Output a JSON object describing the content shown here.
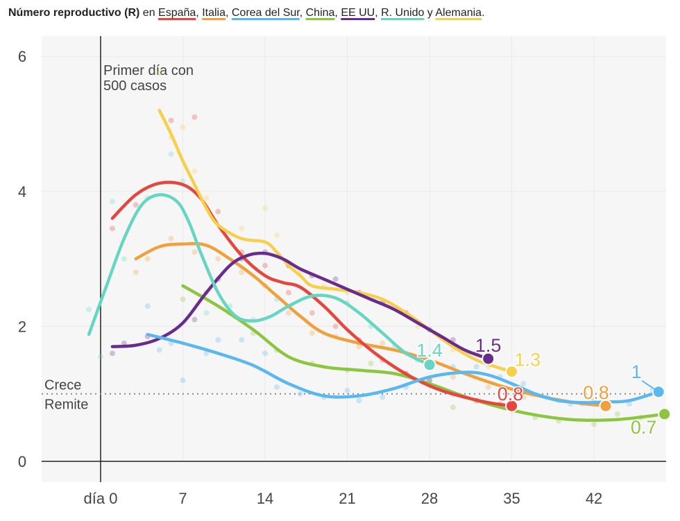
{
  "header": {
    "title": "Número reproductivo (R)",
    "prefix": " en ",
    "suffix": ".",
    "countries": [
      {
        "name": "España",
        "sep": ", ",
        "color": "#e5463e"
      },
      {
        "name": "Italia",
        "sep": ", ",
        "color": "#f0a03c"
      },
      {
        "name": "Corea del Sur",
        "sep": ", ",
        "color": "#5bb8ef"
      },
      {
        "name": "China",
        "sep": ", ",
        "color": "#8cc63f"
      },
      {
        "name": "EE UU",
        "sep": ", ",
        "color": "#6a2c8c"
      },
      {
        "name": "R. Unido",
        "sep": " y ",
        "color": "#66d6c3"
      },
      {
        "name": "Alemania",
        "sep": "",
        "color": "#f6d04d"
      }
    ]
  },
  "chart_data": {
    "type": "line",
    "title": "Número reproductivo (R) en España, Italia, Corea del Sur, China, EE UU, R. Unido y Alemania.",
    "xlim": [
      -7,
      48
    ],
    "ylim": [
      -0.3,
      6.3
    ],
    "x_ticks": [
      0,
      7,
      14,
      21,
      28,
      35,
      42
    ],
    "x_tick_labels": [
      "día 0",
      "7",
      "14",
      "21",
      "28",
      "35",
      "42"
    ],
    "y_ticks": [
      0,
      2,
      4,
      6
    ],
    "y_tick_labels": [
      "0",
      "2",
      "4",
      "6"
    ],
    "grid": true,
    "annotations": {
      "day_zero_line": {
        "x": 0,
        "text_line1": "Primer día con",
        "text_line2": "500 casos"
      },
      "threshold": {
        "y": 1,
        "above": "Crece",
        "below": "Remite"
      }
    },
    "series": [
      {
        "name": "China",
        "color": "#8cc63f",
        "x": [
          7,
          10,
          13,
          16,
          19,
          22,
          25,
          28,
          32,
          36,
          40,
          44,
          48
        ],
        "y": [
          2.6,
          2.3,
          1.95,
          1.55,
          1.4,
          1.35,
          1.3,
          1.15,
          0.9,
          0.72,
          0.62,
          0.62,
          0.7
        ],
        "end_label": "0.7",
        "scatter": [
          [
            7,
            2.4
          ],
          [
            9,
            2.5
          ],
          [
            11,
            2.2
          ],
          [
            13,
            1.9
          ],
          [
            15,
            1.65
          ],
          [
            18,
            1.45
          ],
          [
            21,
            1.35
          ],
          [
            23,
            1.45
          ],
          [
            26,
            1.3
          ],
          [
            28,
            1.2
          ],
          [
            30,
            0.8
          ],
          [
            32,
            0.9
          ],
          [
            35,
            0.75
          ],
          [
            37,
            0.65
          ],
          [
            39,
            0.6
          ],
          [
            42,
            0.55
          ],
          [
            44,
            0.7
          ],
          [
            46,
            0.65
          ]
        ]
      },
      {
        "name": "Italia",
        "color": "#f0a03c",
        "x": [
          3,
          5,
          7,
          9,
          11,
          13,
          15,
          17,
          19,
          22,
          25,
          28,
          31,
          34,
          37,
          40,
          43
        ],
        "y": [
          3.0,
          3.18,
          3.22,
          3.2,
          3.0,
          2.75,
          2.45,
          2.15,
          1.9,
          1.75,
          1.65,
          1.5,
          1.3,
          1.12,
          0.98,
          0.88,
          0.82
        ],
        "end_label": "0.8",
        "scatter": [
          [
            3,
            2.8
          ],
          [
            4,
            3.0
          ],
          [
            6,
            3.3
          ],
          [
            8,
            3.1
          ],
          [
            10,
            3.0
          ],
          [
            12,
            2.8
          ],
          [
            14,
            2.6
          ],
          [
            16,
            2.2
          ],
          [
            18,
            1.9
          ],
          [
            20,
            1.85
          ],
          [
            22,
            1.7
          ],
          [
            24,
            1.75
          ],
          [
            26,
            1.6
          ],
          [
            28,
            1.4
          ],
          [
            30,
            1.25
          ],
          [
            33,
            1.1
          ],
          [
            36,
            0.95
          ],
          [
            39,
            0.9
          ],
          [
            41,
            0.85
          ]
        ]
      },
      {
        "name": "España",
        "color": "#e5463e",
        "x": [
          1,
          3,
          5,
          7,
          8.5,
          10,
          12,
          14,
          15.5,
          17,
          19,
          21,
          23,
          25,
          27,
          29,
          31,
          33,
          35
        ],
        "y": [
          3.6,
          3.95,
          4.12,
          4.1,
          3.9,
          3.5,
          3.05,
          2.75,
          2.65,
          2.58,
          2.3,
          1.95,
          1.65,
          1.4,
          1.2,
          1.05,
          0.95,
          0.87,
          0.82
        ],
        "end_label": "0.8",
        "scatter": [
          [
            1,
            3.45
          ],
          [
            3,
            3.8
          ],
          [
            6,
            5.05
          ],
          [
            8,
            5.1
          ],
          [
            10,
            3.7
          ],
          [
            12,
            3.1
          ],
          [
            14,
            2.9
          ],
          [
            16,
            2.5
          ],
          [
            18,
            2.2
          ],
          [
            20,
            2.0
          ],
          [
            22,
            1.8
          ],
          [
            24,
            1.5
          ],
          [
            26,
            1.3
          ],
          [
            28,
            1.2
          ],
          [
            30,
            1.0
          ],
          [
            32,
            0.9
          ],
          [
            34,
            0.85
          ]
        ]
      },
      {
        "name": "Alemania",
        "color": "#f6d04d",
        "x": [
          5,
          6,
          7,
          8,
          9,
          10,
          12,
          14,
          15,
          16,
          17,
          18,
          20,
          22,
          24,
          26,
          28,
          30,
          32,
          34,
          35
        ],
        "y": [
          5.2,
          4.85,
          4.45,
          4.1,
          3.75,
          3.5,
          3.3,
          3.25,
          3.1,
          2.9,
          2.75,
          2.6,
          2.55,
          2.5,
          2.4,
          2.2,
          1.95,
          1.7,
          1.5,
          1.38,
          1.33
        ],
        "end_label": "1.3",
        "scatter": [
          [
            5,
            5.75
          ],
          [
            6,
            4.8
          ],
          [
            7,
            4.95
          ],
          [
            8,
            4.3
          ],
          [
            9,
            3.9
          ],
          [
            12,
            3.45
          ],
          [
            14,
            3.75
          ],
          [
            15,
            3.35
          ],
          [
            17,
            2.8
          ],
          [
            19,
            2.6
          ],
          [
            21,
            2.5
          ],
          [
            24,
            2.35
          ],
          [
            27,
            2.0
          ],
          [
            30,
            1.65
          ],
          [
            33,
            1.4
          ]
        ]
      },
      {
        "name": "EE UU",
        "color": "#6a2c8c",
        "x": [
          1,
          3,
          5,
          7,
          9,
          11,
          12.5,
          14,
          15.5,
          17,
          19,
          21,
          23,
          25,
          27,
          29,
          31,
          33
        ],
        "y": [
          1.7,
          1.72,
          1.82,
          2.05,
          2.5,
          2.9,
          3.05,
          3.08,
          3.0,
          2.85,
          2.7,
          2.55,
          2.4,
          2.25,
          2.05,
          1.85,
          1.65,
          1.52
        ],
        "end_label": "1.5",
        "scatter": [
          [
            1,
            1.6
          ],
          [
            2,
            1.75
          ],
          [
            4,
            1.85
          ],
          [
            8,
            2.1
          ],
          [
            10,
            2.7
          ],
          [
            12,
            3.0
          ],
          [
            14,
            3.1
          ],
          [
            16,
            2.9
          ],
          [
            18,
            2.75
          ],
          [
            20,
            2.7
          ],
          [
            22,
            2.5
          ],
          [
            24,
            2.35
          ],
          [
            26,
            2.2
          ],
          [
            28,
            1.95
          ],
          [
            30,
            1.8
          ],
          [
            32,
            1.6
          ]
        ]
      },
      {
        "name": "R. Unido",
        "color": "#66d6c3",
        "x": [
          -1,
          0.5,
          2,
          3.5,
          5,
          6.5,
          7.5,
          8.5,
          10,
          11.5,
          13,
          14.5,
          16,
          18,
          20,
          22,
          24,
          26,
          28
        ],
        "y": [
          1.88,
          2.6,
          3.3,
          3.8,
          3.95,
          3.85,
          3.55,
          3.1,
          2.5,
          2.15,
          2.08,
          2.15,
          2.3,
          2.45,
          2.42,
          2.2,
          1.9,
          1.6,
          1.43
        ],
        "end_label": "1.4",
        "scatter": [
          [
            -1,
            2.25
          ],
          [
            0,
            1.55
          ],
          [
            1,
            3.85
          ],
          [
            2,
            3.0
          ],
          [
            4,
            3.9
          ],
          [
            6,
            4.55
          ],
          [
            7,
            4.15
          ],
          [
            9,
            2.2
          ],
          [
            11,
            2.3
          ],
          [
            13,
            2.1
          ],
          [
            15,
            2.4
          ],
          [
            18,
            2.45
          ],
          [
            21,
            2.35
          ],
          [
            23,
            2.0
          ],
          [
            25,
            1.7
          ],
          [
            27,
            1.5
          ]
        ]
      },
      {
        "name": "Corea del Sur",
        "color": "#5bb8ef",
        "x": [
          4,
          7,
          10,
          13,
          16,
          19,
          22,
          25,
          28,
          31,
          33,
          35,
          37,
          39,
          41,
          43,
          45,
          47.5
        ],
        "y": [
          1.88,
          1.75,
          1.6,
          1.42,
          1.15,
          0.97,
          0.97,
          1.08,
          1.25,
          1.32,
          1.28,
          1.15,
          1.0,
          0.9,
          0.87,
          0.88,
          0.9,
          1.03
        ],
        "end_label": "1",
        "scatter": [
          [
            4,
            2.3
          ],
          [
            5,
            1.65
          ],
          [
            6,
            1.75
          ],
          [
            7,
            1.2
          ],
          [
            9,
            1.6
          ],
          [
            10,
            1.8
          ],
          [
            12,
            1.8
          ],
          [
            14,
            1.6
          ],
          [
            15,
            1.1
          ],
          [
            17,
            1.0
          ],
          [
            19,
            0.95
          ],
          [
            21,
            1.05
          ],
          [
            22,
            0.9
          ],
          [
            24,
            0.95
          ],
          [
            26,
            1.1
          ],
          [
            28,
            1.2
          ],
          [
            30,
            1.4
          ],
          [
            32,
            1.4
          ],
          [
            34,
            1.25
          ],
          [
            36,
            1.15
          ],
          [
            38,
            0.95
          ],
          [
            40,
            0.85
          ],
          [
            42,
            0.9
          ],
          [
            45,
            0.85
          ],
          [
            47,
            1.05
          ]
        ]
      }
    ]
  }
}
